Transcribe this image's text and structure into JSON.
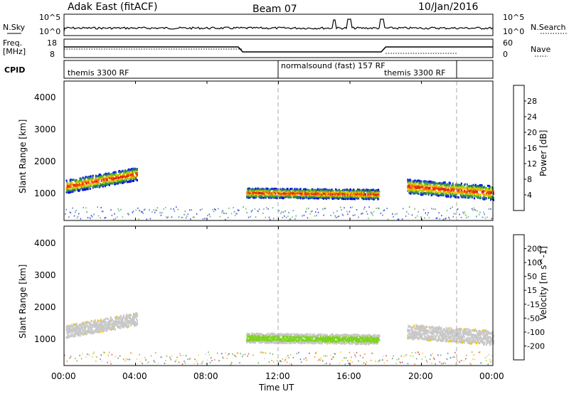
{
  "header": {
    "radar": "Adak East (fitACF)",
    "beam": "Beam 07",
    "date": "10/Jan/2016"
  },
  "nsky_panel": {
    "left_label": "N.Sky",
    "left_ticks": [
      "10^5",
      "10^0"
    ],
    "right_ticks": [
      "10^5",
      "10^0"
    ],
    "right_label": "N.Search"
  },
  "freq_panel": {
    "left_label_1": "Freq.",
    "left_label_2": "[MHz]",
    "left_ticks": [
      "18",
      "8"
    ],
    "right_ticks": [
      "60",
      "0"
    ],
    "right_label": "Nave"
  },
  "cpid_panel": {
    "label": "CPID",
    "modes": [
      {
        "text": "themis 3300 RF",
        "start_hour": 0,
        "end_hour": 12
      },
      {
        "text": "normalsound (fast) 157 RF",
        "start_hour": 12,
        "end_hour": 22
      },
      {
        "text": "themis 3300 RF",
        "start_hour": 22,
        "end_hour": 24
      }
    ]
  },
  "x_axis": {
    "label": "Time UT",
    "ticks": [
      "00:00",
      "04:00",
      "08:00",
      "12:00",
      "16:00",
      "20:00",
      "00:00"
    ],
    "range_hours": [
      0,
      24
    ]
  },
  "power_panel": {
    "ylabel": "Slant Range [km]",
    "yticks": [
      "1000",
      "2000",
      "3000",
      "4000"
    ],
    "colorbar_label": "Power [dB]",
    "colorbar_ticks": [
      "4",
      "8",
      "12",
      "16",
      "20",
      "24",
      "28"
    ],
    "colors": [
      "#0000ee",
      "#1f4fb4",
      "#2a7a5a",
      "#39a83a",
      "#a6d300",
      "#f5c400",
      "#f08c00",
      "#e84a00",
      "#e31a1c"
    ]
  },
  "velocity_panel": {
    "ylabel": "Slant Range [km]",
    "yticks": [
      "1000",
      "2000",
      "3000",
      "4000"
    ],
    "colorbar_label": "Velocity [m s^-1]",
    "colorbar_ticks": [
      "200",
      "100",
      "50",
      "15",
      "-15",
      "-50",
      "-100",
      "-200"
    ],
    "colors": [
      "#1f3fb4",
      "#2a7a5a",
      "#3f9a2a",
      "#7ed320",
      "#c8c8c8",
      "#f5c400",
      "#f0a000",
      "#f06a00",
      "#e31a1c"
    ]
  },
  "chart_data": {
    "type": "heatmap",
    "x_range_hours": [
      0,
      24
    ],
    "y_range_km": [
      200,
      4600
    ],
    "power_regions": [
      {
        "label": "band-morning",
        "t_start": 0.1,
        "t_end": 4.1,
        "r_center_start": 1300,
        "r_center_end": 1700,
        "width_km": 400,
        "level_db": 26
      },
      {
        "label": "band-noon",
        "t_start": 10.2,
        "t_end": 17.6,
        "r_center_start": 1100,
        "r_center_end": 1050,
        "width_km": 300,
        "level_db": 24
      },
      {
        "label": "band-evening",
        "t_start": 19.2,
        "t_end": 24.0,
        "r_center_start": 1300,
        "r_center_end": 1100,
        "width_km": 450,
        "level_db": 25
      }
    ],
    "velocity_regions": [
      {
        "label": "band-morning",
        "t_start": 0.1,
        "t_end": 4.1,
        "r_center_start": 1300,
        "r_center_end": 1700,
        "width_km": 400,
        "velocity": 0
      },
      {
        "label": "band-noon",
        "t_start": 10.2,
        "t_end": 17.6,
        "r_center_start": 1100,
        "r_center_end": 1050,
        "width_km": 300,
        "velocity": 40
      },
      {
        "label": "band-evening",
        "t_start": 19.2,
        "t_end": 24.0,
        "r_center_start": 1300,
        "r_center_end": 1100,
        "width_km": 450,
        "velocity": 0
      }
    ]
  }
}
